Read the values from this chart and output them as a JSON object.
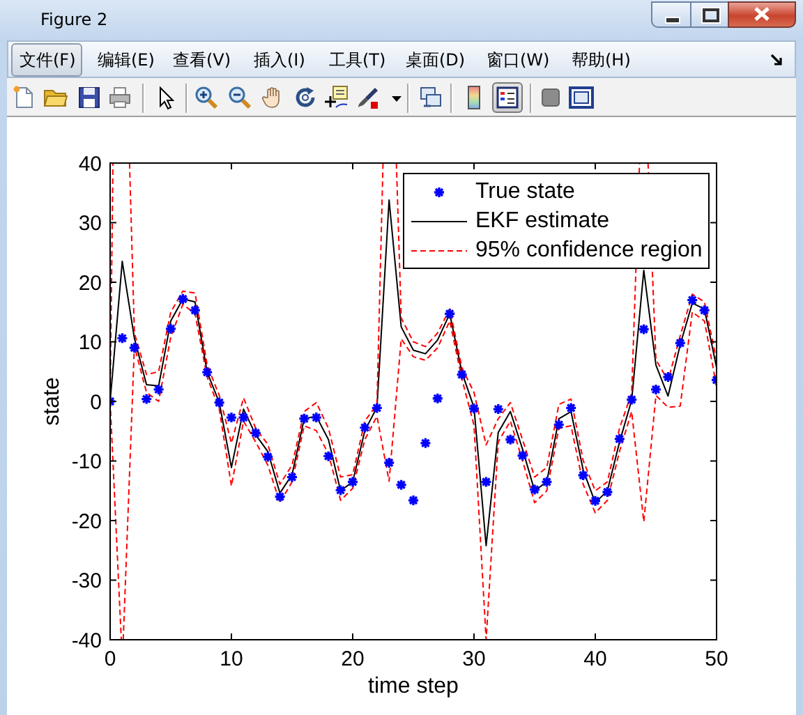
{
  "chart_data": {
    "type": "line",
    "xlabel": "time step",
    "ylabel": "state",
    "annotations": [
      "Figure 2",
      "文件(F)",
      "编辑(E)",
      "查看(V)",
      "插入(I)",
      "工具(T)",
      "桌面(D)",
      "窗口(W)",
      "帮助(H)"
    ],
    "x": [
      0,
      1,
      2,
      3,
      4,
      5,
      6,
      7,
      8,
      9,
      10,
      11,
      12,
      13,
      14,
      15,
      16,
      17,
      18,
      19,
      20,
      21,
      22,
      23,
      24,
      25,
      26,
      27,
      28,
      29,
      30,
      31,
      32,
      33,
      34,
      35,
      36,
      37,
      38,
      39,
      40,
      41,
      42,
      43,
      44,
      45,
      46,
      47,
      48,
      49,
      50
    ],
    "xlim": [
      0,
      50
    ],
    "xticks": [
      0,
      10,
      20,
      30,
      40,
      50
    ],
    "ylim": [
      -40,
      40
    ],
    "yticks": [
      -40,
      -30,
      -20,
      -10,
      0,
      10,
      20,
      30,
      40
    ],
    "legend": "top right",
    "series": [
      {
        "name": "True state",
        "type": "scatter",
        "marker": "cross",
        "color": "#0000ff",
        "values": [
          0,
          10.6,
          9.0,
          0.4,
          2.0,
          12.2,
          17.2,
          15.3,
          4.9,
          -0.2,
          -2.7,
          -2.7,
          -5.3,
          -9.3,
          -16.0,
          -12.7,
          -2.9,
          -2.7,
          -9.2,
          -14.9,
          -13.5,
          -4.4,
          -1.1,
          -10.3,
          -14.0,
          -16.6,
          -7.0,
          0.5,
          14.7,
          4.5,
          -1.2,
          -13.5,
          -1.3,
          -6.4,
          -9.1,
          -14.8,
          -13.5,
          -3.9,
          -1.1,
          -12.4,
          -16.7,
          -15.2,
          -6.3,
          0.3,
          12.1,
          2.0,
          4.1,
          9.8,
          17.0,
          15.3,
          3.6
        ]
      },
      {
        "name": "EKF estimate",
        "type": "line",
        "color": "#000000",
        "values": [
          0,
          23.5,
          10.6,
          2.8,
          2.6,
          13.5,
          17.2,
          16.7,
          4.9,
          -0.2,
          -11.1,
          -1.3,
          -5.6,
          -8.4,
          -15.4,
          -12.3,
          -2.9,
          -2.5,
          -6.4,
          -15.0,
          -13.5,
          -4.9,
          -1.0,
          33.8,
          12.5,
          8.6,
          8.0,
          10.3,
          14.7,
          4.9,
          -1.0,
          -24.2,
          -5.2,
          -1.7,
          -8.0,
          -15.0,
          -13.5,
          -2.9,
          -1.7,
          -11.5,
          -17.0,
          -15.0,
          -6.8,
          0.2,
          22,
          6.1,
          0.9,
          9.5,
          16.5,
          15.5,
          5.7
        ]
      },
      {
        "name": "95% confidence region",
        "type": "line",
        "line_style": "dashed",
        "color": "#ff0000",
        "x": [
          0,
          0.23,
          1,
          1.6,
          2,
          3,
          4,
          5,
          6,
          7,
          8,
          9,
          10,
          11,
          12,
          13,
          14,
          15,
          16,
          17,
          18,
          19,
          20,
          21,
          22,
          22.5,
          23,
          23.6,
          24,
          25,
          26,
          27,
          28,
          29,
          30,
          31,
          32,
          33,
          34,
          35,
          36,
          37,
          38,
          39,
          40,
          41,
          42,
          43,
          43.65,
          44,
          44.35,
          45,
          46,
          47,
          48,
          49,
          50
        ],
        "values": [
          0,
          40,
          null,
          40,
          11.5,
          4.5,
          5,
          15,
          18.5,
          18.2,
          6.1,
          1.0,
          -7,
          0.6,
          -4.5,
          -7.2,
          -13.9,
          -10.7,
          -1.7,
          -0.2,
          -4.5,
          -12.7,
          -12.3,
          -3.3,
          -0.5,
          40,
          null,
          40,
          14,
          10.0,
          9.2,
          11.5,
          15.5,
          5.7,
          1.5,
          -7.3,
          -2.9,
          -0.2,
          -6.4,
          -12.7,
          -11.1,
          -0.5,
          0.4,
          -9.9,
          -15.0,
          -13.5,
          -4.5,
          1.4,
          40,
          null,
          40,
          7,
          3.5,
          11,
          18.0,
          16.7,
          6.9
        ]
      },
      {
        "type": "line",
        "line_style": "dashed",
        "color": "#ff0000",
        "x": [
          0,
          0.92,
          1,
          1.08,
          2,
          3,
          4,
          5,
          6,
          7,
          8,
          9,
          10,
          11,
          12,
          13,
          14,
          15,
          16,
          17,
          18,
          19,
          20,
          21,
          22,
          23,
          24,
          25,
          26,
          27,
          28,
          29,
          30,
          31,
          32,
          33,
          34,
          35,
          36,
          37,
          38,
          39,
          40,
          41,
          42,
          43,
          44,
          45,
          46,
          47,
          48,
          49,
          50
        ],
        "values": [
          0,
          -40,
          null,
          -40,
          9.3,
          1.5,
          0,
          10.8,
          16.3,
          14.7,
          4.1,
          -1.3,
          -14.2,
          -3.3,
          -6.8,
          -10.7,
          -17.0,
          -13.5,
          -4.1,
          -4.9,
          -8.8,
          -16.6,
          -14.6,
          -6.4,
          -2.5,
          -13.4,
          10.5,
          7.5,
          6.9,
          9.0,
          13.5,
          3.8,
          -4.0,
          -40,
          -6.8,
          -3.3,
          -9.9,
          -17.0,
          -15.0,
          -4.5,
          -4.1,
          -13.9,
          -18.7,
          -16.6,
          -8.4,
          -1.7,
          -20.2,
          1.0,
          -1.0,
          -0.8,
          15.0,
          13.5,
          2.5
        ]
      }
    ]
  }
}
